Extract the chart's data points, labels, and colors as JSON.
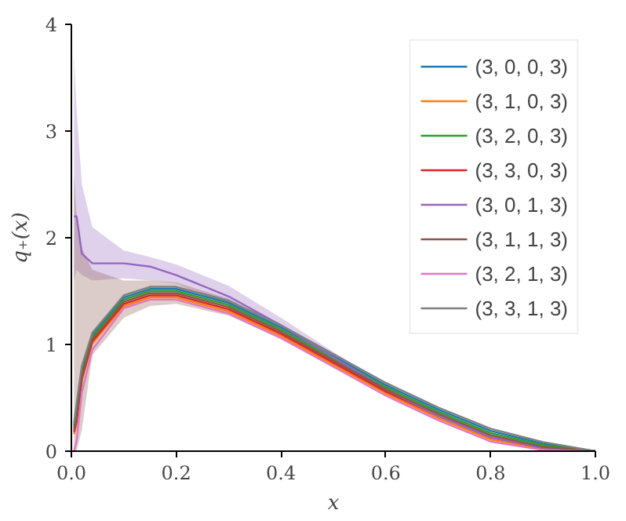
{
  "chart_data": {
    "type": "line",
    "xlabel": "x",
    "ylabel": "q₊(x)",
    "x": [
      0.005,
      0.01,
      0.02,
      0.04,
      0.1,
      0.15,
      0.2,
      0.3,
      0.4,
      0.5,
      0.6,
      0.7,
      0.8,
      0.9,
      1.0
    ],
    "xlim": [
      0,
      1
    ],
    "ylim": [
      0,
      4
    ],
    "xticks": [
      {
        "value": 0,
        "label": "0.0"
      },
      0.2,
      0.4,
      0.6,
      0.8,
      {
        "value": 1,
        "label": "1.0"
      }
    ],
    "yticks": [
      0,
      1,
      2,
      3,
      4
    ],
    "grid": false,
    "legend": "top right",
    "line_style": "solid",
    "marker": "none",
    "series": [
      {
        "name": "(3, 0, 0, 3)",
        "color": "#1f77b4",
        "values": [
          0.24,
          0.34,
          0.74,
          1.09,
          1.44,
          1.52,
          1.52,
          1.39,
          1.16,
          0.89,
          0.62,
          0.39,
          0.19,
          0.07,
          0
        ]
      },
      {
        "name": "(3, 1, 0, 3)",
        "color": "#ff7f0e",
        "values": [
          0.16,
          0.26,
          0.66,
          1.01,
          1.36,
          1.44,
          1.44,
          1.31,
          1.08,
          0.81,
          0.54,
          0.31,
          0.11,
          0.02,
          0
        ]
      },
      {
        "name": "(3, 2, 0, 3)",
        "color": "#2ca02c",
        "values": [
          0.22,
          0.32,
          0.72,
          1.07,
          1.42,
          1.5,
          1.5,
          1.37,
          1.14,
          0.87,
          0.6,
          0.37,
          0.17,
          0.055,
          0
        ]
      },
      {
        "name": "(3, 3, 0, 3)",
        "color": "#d62728",
        "values": [
          0.18,
          0.28,
          0.68,
          1.03,
          1.38,
          1.46,
          1.46,
          1.33,
          1.1,
          0.83,
          0.56,
          0.33,
          0.13,
          0.03,
          0
        ]
      },
      {
        "name": "(3, 0, 1, 3)",
        "color": "#9467bd",
        "values": [
          2.2,
          2.2,
          1.85,
          1.76,
          1.76,
          1.73,
          1.65,
          1.45,
          1.18,
          0.88,
          0.58,
          0.33,
          0.13,
          0.03,
          0
        ],
        "lower": [
          1.6,
          1.7,
          1.65,
          1.6,
          1.62,
          1.6,
          1.57,
          1.36,
          1.1,
          0.82,
          0.54,
          0.3,
          0.11,
          0.02,
          0
        ],
        "upper": [
          3.7,
          3.2,
          2.5,
          2.1,
          1.88,
          1.82,
          1.75,
          1.55,
          1.25,
          0.93,
          0.62,
          0.37,
          0.16,
          0.05,
          0.01
        ]
      },
      {
        "name": "(3, 1, 1, 3)",
        "color": "#8c564b",
        "values": [
          0.2,
          0.3,
          0.7,
          1.05,
          1.4,
          1.48,
          1.48,
          1.35,
          1.12,
          0.85,
          0.58,
          0.35,
          0.15,
          0.04,
          0
        ],
        "lower": [
          0,
          0,
          0.2,
          0.9,
          1.25,
          1.36,
          1.38,
          1.27,
          1.05,
          0.8,
          0.54,
          0.32,
          0.13,
          0.03,
          0
        ],
        "upper": [
          2.6,
          2.2,
          1.9,
          1.7,
          1.6,
          1.6,
          1.58,
          1.43,
          1.18,
          0.9,
          0.62,
          0.38,
          0.17,
          0.05,
          0.01
        ]
      },
      {
        "name": "(3, 2, 1, 3)",
        "color": "#e377c2",
        "values": [
          0,
          0.1,
          0.55,
          0.95,
          1.34,
          1.42,
          1.42,
          1.29,
          1.06,
          0.79,
          0.52,
          0.29,
          0.09,
          0.01,
          0
        ]
      },
      {
        "name": "(3, 3, 1, 3)",
        "color": "#7f7f7f",
        "values": [
          0.26,
          0.45,
          0.8,
          1.11,
          1.46,
          1.54,
          1.54,
          1.41,
          1.18,
          0.91,
          0.64,
          0.41,
          0.21,
          0.085,
          0
        ]
      }
    ]
  }
}
